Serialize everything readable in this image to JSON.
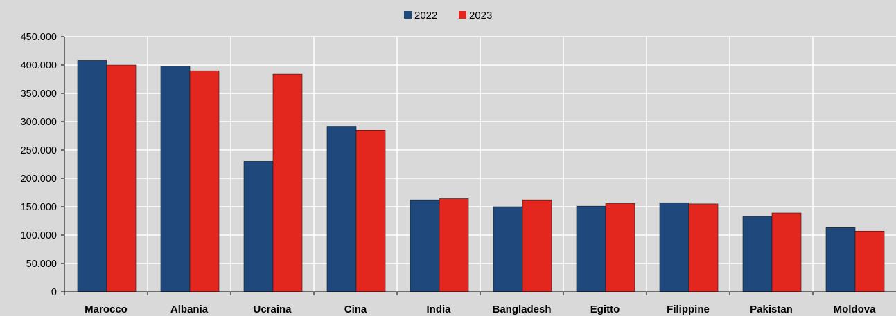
{
  "chart_data": {
    "type": "bar",
    "categories": [
      "Marocco",
      "Albania",
      "Ucraina",
      "Cina",
      "India",
      "Bangladesh",
      "Egitto",
      "Filippine",
      "Pakistan",
      "Moldova"
    ],
    "series": [
      {
        "name": "2022",
        "color": "#1f497d",
        "values": [
          408000,
          398000,
          230000,
          292000,
          162000,
          150000,
          151000,
          157000,
          133000,
          113000
        ]
      },
      {
        "name": "2023",
        "color": "#e3261e",
        "values": [
          400000,
          390000,
          384000,
          285000,
          164000,
          162000,
          156000,
          155000,
          139000,
          107000
        ]
      }
    ],
    "y_ticks": [
      "0",
      "50.000",
      "100.000",
      "150.000",
      "200.000",
      "250.000",
      "300.000",
      "350.000",
      "400.000",
      "450.000"
    ],
    "ylim": [
      0,
      450000
    ],
    "y_step": 50000,
    "grid": true,
    "legend_position": "top-center",
    "title": "",
    "xlabel": "",
    "ylabel": ""
  }
}
